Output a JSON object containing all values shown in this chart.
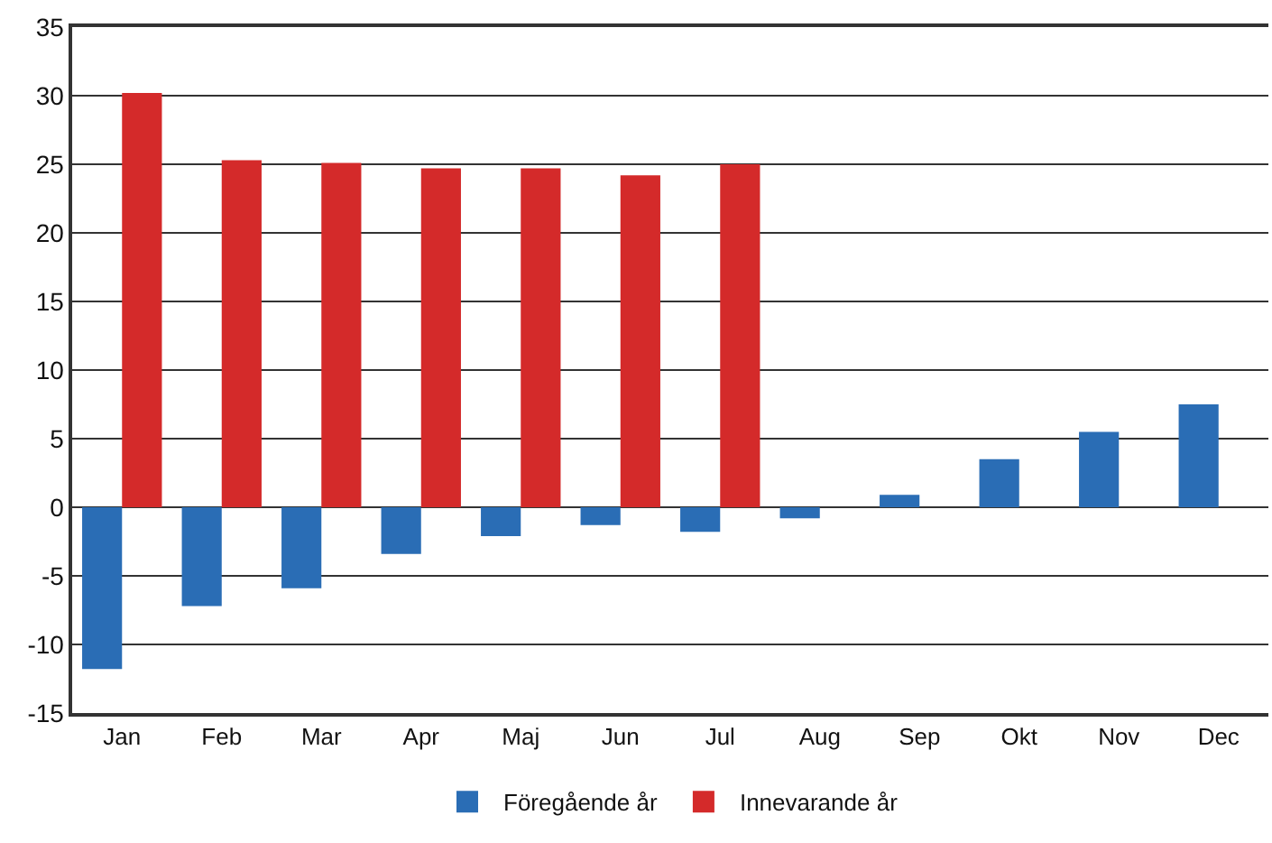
{
  "chart_data": {
    "type": "bar",
    "categories": [
      "Jan",
      "Feb",
      "Mar",
      "Apr",
      "Maj",
      "Jun",
      "Jul",
      "Aug",
      "Sep",
      "Okt",
      "Nov",
      "Dec"
    ],
    "series": [
      {
        "name": "Föregående år",
        "color": "#2a6db5",
        "values": [
          -11.8,
          -7.2,
          -5.9,
          -3.4,
          -2.1,
          -1.3,
          -1.8,
          -0.8,
          0.9,
          3.5,
          5.5,
          7.5
        ]
      },
      {
        "name": "Innevarande år",
        "color": "#d42a2a",
        "values": [
          30.2,
          25.3,
          25.1,
          24.7,
          24.7,
          24.2,
          25.0,
          null,
          null,
          null,
          null,
          null
        ]
      }
    ],
    "ylim": [
      -15,
      35
    ],
    "yticks": [
      -15,
      -10,
      -5,
      0,
      5,
      10,
      15,
      20,
      25,
      30,
      35
    ],
    "grid": "y",
    "legend": "bottom"
  }
}
